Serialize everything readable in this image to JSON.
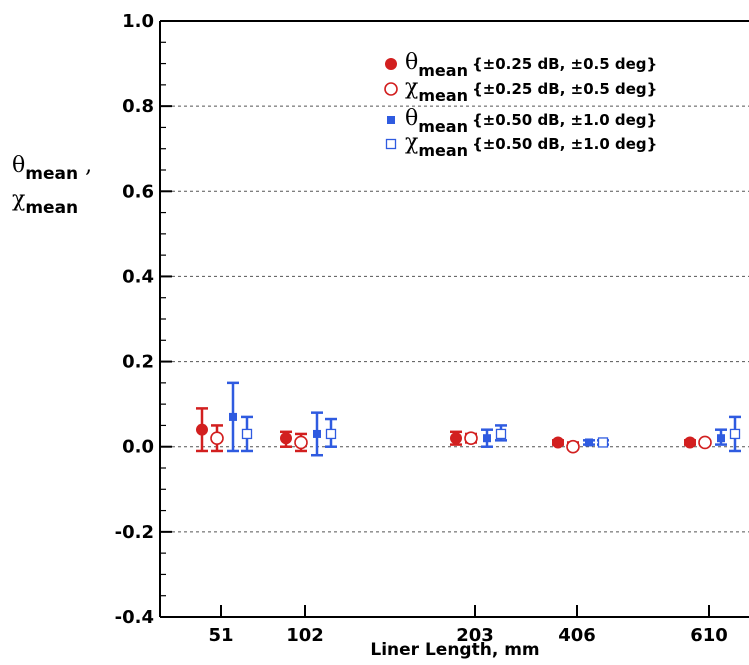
{
  "chart_data": {
    "type": "scatter",
    "xlabel": "Liner Length, mm",
    "ylabel": {
      "line1_symbol": "θ",
      "line1_sub": "mean",
      "line1_suffix": " ,",
      "line2_symbol": "χ",
      "line2_sub": "mean"
    },
    "categories": [
      "51",
      "102",
      "203",
      "406",
      "610"
    ],
    "ylim": [
      -0.4,
      1.0
    ],
    "y_ticks": [
      "1.0",
      "0.8",
      "0.6",
      "0.4",
      "0.2",
      "0.0",
      "-0.2",
      "-0.4"
    ],
    "y_tick_values": [
      1.0,
      0.8,
      0.6,
      0.4,
      0.2,
      0.0,
      -0.2,
      -0.4
    ],
    "grid": "horizontal dashed",
    "legend_position": "top-right",
    "series": [
      {
        "symbol": "θ",
        "sub": "mean",
        "detail": "{±0.25 dB, ±0.5 deg}",
        "marker": "filled-circle",
        "color": "#d21f1f",
        "values": [
          0.04,
          0.02,
          0.02,
          0.01,
          0.01
        ],
        "err_low": [
          -0.01,
          0.0,
          0.005,
          0.005,
          0.005
        ],
        "err_high": [
          0.09,
          0.035,
          0.035,
          0.015,
          0.015
        ]
      },
      {
        "symbol": "χ",
        "sub": "mean",
        "detail": "{±0.25 dB, ±0.5 deg}",
        "marker": "open-circle",
        "color": "#d21f1f",
        "values": [
          0.02,
          0.01,
          0.02,
          0.0,
          0.01
        ],
        "err_low": [
          -0.01,
          -0.01,
          0.01,
          -0.005,
          0.005
        ],
        "err_high": [
          0.05,
          0.03,
          0.03,
          0.01,
          0.015
        ]
      },
      {
        "symbol": "θ",
        "sub": "mean",
        "detail": "{±0.50 dB, ±1.0 deg}",
        "marker": "filled-square",
        "color": "#2f5be0",
        "values": [
          0.07,
          0.03,
          0.02,
          0.01,
          0.02
        ],
        "err_low": [
          -0.01,
          -0.02,
          0.0,
          0.005,
          0.005
        ],
        "err_high": [
          0.15,
          0.08,
          0.04,
          0.015,
          0.04
        ]
      },
      {
        "symbol": "χ",
        "sub": "mean",
        "detail": "{±0.50 dB, ±1.0 deg}",
        "marker": "open-square",
        "color": "#2f5be0",
        "values": [
          0.03,
          0.03,
          0.03,
          0.01,
          0.03
        ],
        "err_low": [
          -0.01,
          0.0,
          0.015,
          0.005,
          -0.01
        ],
        "err_high": [
          0.07,
          0.065,
          0.05,
          0.015,
          0.07
        ]
      }
    ]
  }
}
